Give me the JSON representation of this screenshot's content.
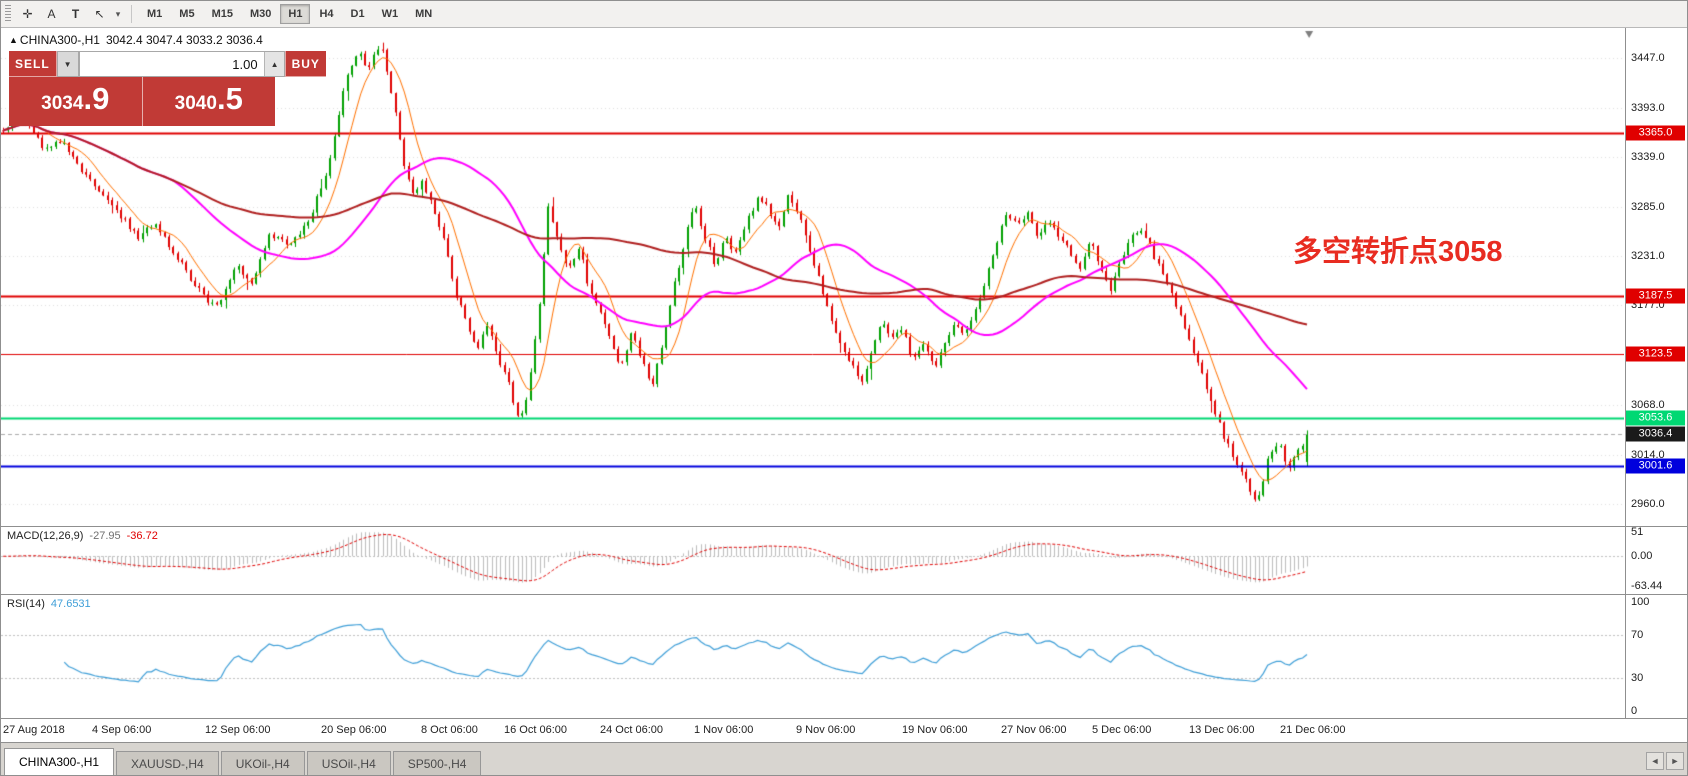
{
  "colors": {
    "accent_red": "#c13a36",
    "up_candle": "#00a000",
    "down_candle": "#e00000",
    "ma_fast": "#ff7100",
    "ma_mid": "#ff00ff",
    "ma_slow": "#b02020",
    "macd_hist": "#bdbdbd",
    "macd_signal": "#e00000",
    "rsi_line": "#3f9fd8",
    "annotation": "#e82c21",
    "current_price_badge": "#1a1a1a"
  },
  "toolbar": {
    "tool_icons": [
      {
        "name": "crosshair-icon",
        "glyph": "✛"
      },
      {
        "name": "text-label-icon",
        "glyph": "A"
      },
      {
        "name": "text-tool-icon",
        "glyph": "T"
      },
      {
        "name": "cursor-style-icon",
        "glyph": "↖"
      }
    ],
    "caret": "▾",
    "timeframes": [
      "M1",
      "M5",
      "M15",
      "M30",
      "H1",
      "H4",
      "D1",
      "W1",
      "MN"
    ],
    "active_timeframe": "H1"
  },
  "symbol_header": {
    "marker": "▲",
    "symbol": "CHINA300-,H1",
    "ohlc": "3042.4 3047.4 3033.2 3036.4"
  },
  "trade_panel": {
    "sell_label": "SELL",
    "buy_label": "BUY",
    "volume": "1.00",
    "combo_caret": "▼",
    "spinner_caret": "▲",
    "sell_price_main": "3034",
    "sell_price_big": ".9",
    "buy_price_main": "3040",
    "buy_price_big": ".5"
  },
  "annotation": {
    "text": "多空转折点3058"
  },
  "price_axis_labels": [
    {
      "text": "3447.0",
      "value": 3447.0
    },
    {
      "text": "3393.0",
      "value": 3393.0
    },
    {
      "text": "3339.0",
      "value": 3339.0
    },
    {
      "text": "3285.0",
      "value": 3285.0
    },
    {
      "text": "3231.0",
      "value": 3231.0
    },
    {
      "text": "3177.0",
      "value": 3177.0
    },
    {
      "text": "3068.0",
      "value": 3068.0
    },
    {
      "text": "3014.0",
      "value": 3014.0
    },
    {
      "text": "2960.0",
      "value": 2960.0
    }
  ],
  "levels": [
    {
      "value": 3365.0,
      "label": "3365.0",
      "color": "#e00000",
      "width": 2
    },
    {
      "value": 3187.5,
      "label": "3187.5",
      "color": "#e00000",
      "width": 2
    },
    {
      "value": 3123.5,
      "label": "3123.5",
      "color": "#e00000",
      "width": 1
    },
    {
      "value": 3053.6,
      "label": "3053.6",
      "color": "#00d873",
      "width": 2
    },
    {
      "value": 3001.6,
      "label": "3001.6",
      "color": "#0000dd",
      "width": 2
    }
  ],
  "current_price": {
    "value": 3036.4,
    "label": "3036.4"
  },
  "chart_data": {
    "type": "candlestick",
    "symbol": "CHINA300-",
    "timeframe": "H1",
    "bars": 300,
    "seed": 11,
    "data_end_fraction": 0.806,
    "ylim": [
      2936,
      3480
    ],
    "price_anchors": [
      [
        0,
        3368
      ],
      [
        0.015,
        3382
      ],
      [
        0.03,
        3350
      ],
      [
        0.045,
        3358
      ],
      [
        0.06,
        3322
      ],
      [
        0.075,
        3300
      ],
      [
        0.09,
        3275
      ],
      [
        0.105,
        3250
      ],
      [
        0.115,
        3268
      ],
      [
        0.13,
        3235
      ],
      [
        0.145,
        3205
      ],
      [
        0.155,
        3185
      ],
      [
        0.165,
        3175
      ],
      [
        0.18,
        3222
      ],
      [
        0.19,
        3200
      ],
      [
        0.205,
        3255
      ],
      [
        0.22,
        3242
      ],
      [
        0.235,
        3272
      ],
      [
        0.25,
        3330
      ],
      [
        0.262,
        3420
      ],
      [
        0.272,
        3455
      ],
      [
        0.28,
        3434
      ],
      [
        0.29,
        3466
      ],
      [
        0.3,
        3396
      ],
      [
        0.308,
        3330
      ],
      [
        0.315,
        3296
      ],
      [
        0.322,
        3312
      ],
      [
        0.33,
        3282
      ],
      [
        0.338,
        3252
      ],
      [
        0.348,
        3186
      ],
      [
        0.356,
        3156
      ],
      [
        0.364,
        3130
      ],
      [
        0.372,
        3158
      ],
      [
        0.38,
        3120
      ],
      [
        0.388,
        3090
      ],
      [
        0.396,
        3046
      ],
      [
        0.402,
        3076
      ],
      [
        0.41,
        3160
      ],
      [
        0.418,
        3286
      ],
      [
        0.426,
        3248
      ],
      [
        0.434,
        3216
      ],
      [
        0.442,
        3242
      ],
      [
        0.45,
        3192
      ],
      [
        0.458,
        3172
      ],
      [
        0.466,
        3140
      ],
      [
        0.474,
        3108
      ],
      [
        0.482,
        3148
      ],
      [
        0.49,
        3118
      ],
      [
        0.498,
        3090
      ],
      [
        0.506,
        3136
      ],
      [
        0.514,
        3196
      ],
      [
        0.522,
        3242
      ],
      [
        0.53,
        3288
      ],
      [
        0.538,
        3252
      ],
      [
        0.546,
        3222
      ],
      [
        0.554,
        3252
      ],
      [
        0.562,
        3232
      ],
      [
        0.57,
        3268
      ],
      [
        0.578,
        3292
      ],
      [
        0.586,
        3286
      ],
      [
        0.594,
        3260
      ],
      [
        0.602,
        3296
      ],
      [
        0.61,
        3278
      ],
      [
        0.618,
        3238
      ],
      [
        0.626,
        3204
      ],
      [
        0.634,
        3168
      ],
      [
        0.642,
        3138
      ],
      [
        0.65,
        3116
      ],
      [
        0.658,
        3090
      ],
      [
        0.666,
        3130
      ],
      [
        0.674,
        3156
      ],
      [
        0.682,
        3146
      ],
      [
        0.69,
        3148
      ],
      [
        0.698,
        3118
      ],
      [
        0.706,
        3136
      ],
      [
        0.714,
        3108
      ],
      [
        0.722,
        3132
      ],
      [
        0.73,
        3160
      ],
      [
        0.738,
        3146
      ],
      [
        0.746,
        3172
      ],
      [
        0.754,
        3206
      ],
      [
        0.762,
        3246
      ],
      [
        0.77,
        3278
      ],
      [
        0.778,
        3262
      ],
      [
        0.786,
        3280
      ],
      [
        0.794,
        3248
      ],
      [
        0.802,
        3272
      ],
      [
        0.81,
        3254
      ],
      [
        0.818,
        3236
      ],
      [
        0.826,
        3220
      ],
      [
        0.834,
        3248
      ],
      [
        0.842,
        3214
      ],
      [
        0.85,
        3194
      ],
      [
        0.858,
        3228
      ],
      [
        0.866,
        3252
      ],
      [
        0.874,
        3262
      ],
      [
        0.882,
        3234
      ],
      [
        0.89,
        3208
      ],
      [
        0.898,
        3184
      ],
      [
        0.906,
        3154
      ],
      [
        0.914,
        3124
      ],
      [
        0.922,
        3090
      ],
      [
        0.93,
        3060
      ],
      [
        0.938,
        3028
      ],
      [
        0.946,
        3004
      ],
      [
        0.954,
        2982
      ],
      [
        0.962,
        2962
      ],
      [
        0.97,
        3008
      ],
      [
        0.978,
        3030
      ],
      [
        0.986,
        2998
      ],
      [
        0.993,
        3016
      ],
      [
        1,
        3036
      ]
    ],
    "moving_averages": [
      {
        "period": 8,
        "color": "#ff7100",
        "width": 1
      },
      {
        "period": 40,
        "color": "#ff00ff",
        "width": 2
      },
      {
        "period": 90,
        "color": "#b02020",
        "width": 2
      }
    ],
    "time_axis": [
      {
        "text": "27 Aug 2018",
        "f": 0.001
      },
      {
        "text": "4 Sep 06:00",
        "f": 0.056
      },
      {
        "text": "12 Sep 06:00",
        "f": 0.126
      },
      {
        "text": "20 Sep 06:00",
        "f": 0.197
      },
      {
        "text": "8 Oct 06:00",
        "f": 0.259
      },
      {
        "text": "16 Oct 06:00",
        "f": 0.31
      },
      {
        "text": "24 Oct 06:00",
        "f": 0.369
      },
      {
        "text": "1 Nov 06:00",
        "f": 0.427
      },
      {
        "text": "9 Nov 06:00",
        "f": 0.49
      },
      {
        "text": "19 Nov 06:00",
        "f": 0.555
      },
      {
        "text": "27 Nov 06:00",
        "f": 0.616
      },
      {
        "text": "5 Dec 06:00",
        "f": 0.672
      },
      {
        "text": "13 Dec 06:00",
        "f": 0.732
      },
      {
        "text": "21 Dec 06:00",
        "f": 0.788
      }
    ],
    "macd": {
      "label": "MACD(12,26,9)",
      "value_main": "-27.95",
      "value_signal": "-36.72",
      "params": [
        12,
        26,
        9
      ],
      "axis": [
        {
          "text": "51",
          "value": 51
        },
        {
          "text": "0.00",
          "value": 0
        },
        {
          "text": "-63.44",
          "value": -63.44
        }
      ],
      "display_range": [
        -80,
        62
      ]
    },
    "rsi": {
      "label": "RSI(14)",
      "value": "47.6531",
      "period": 14,
      "axis": [
        {
          "text": "100",
          "value": 100
        },
        {
          "text": "70",
          "value": 70
        },
        {
          "text": "30",
          "value": 30
        },
        {
          "text": "0",
          "value": 0
        }
      ],
      "dashed_levels": [
        70,
        30
      ],
      "display_range": [
        27,
        79
      ]
    }
  },
  "tabs": {
    "items": [
      {
        "label": "CHINA300-,H1",
        "active": true
      },
      {
        "label": "XAUUSD-,H4",
        "active": false
      },
      {
        "label": "UKOil-,H4",
        "active": false
      },
      {
        "label": "USOil-,H4",
        "active": false
      },
      {
        "label": "SP500-,H4",
        "active": false
      }
    ],
    "scroll_left": "◄",
    "scroll_right": "►"
  }
}
